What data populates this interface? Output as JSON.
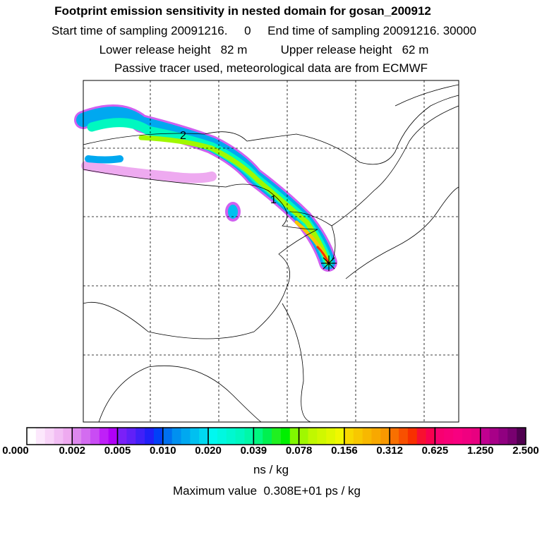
{
  "header": {
    "title": "Footprint emission sensitivity in nested domain for gosan_200912",
    "line1": "Start time of sampling 20091216.     0     End time of sampling 20091216. 30000",
    "line2": "Lower release height   82 m          Upper release height   62 m",
    "line3": "Passive tracer used, meteorological data are from ECMWF"
  },
  "map": {
    "labels": [
      "2",
      "1"
    ],
    "release_marker": "star-icon"
  },
  "colorbar": {
    "ticks": [
      "0.000",
      "0.002",
      "0.005",
      "0.010",
      "0.020",
      "0.039",
      "0.078",
      "0.156",
      "0.312",
      "0.625",
      "1.250",
      "2.500"
    ],
    "colors": [
      [
        "#ffffff",
        "#fce8fc",
        "#f8d4f8",
        "#f2bef4",
        "#eeaaf0"
      ],
      [
        "#dd88ee",
        "#d36cf0",
        "#c94cf4",
        "#bf20f8",
        "#b000f8"
      ],
      [
        "#7a20f8",
        "#6020f8",
        "#4020f8",
        "#2020f8",
        "#0040f8"
      ],
      [
        "#0070f0",
        "#0090f0",
        "#00a8f0",
        "#00c0f0",
        "#00d8f0"
      ],
      [
        "#00f8f0",
        "#00f8e0",
        "#00f8d0",
        "#00f8c0",
        "#00f8a8"
      ],
      [
        "#00f880",
        "#00f050",
        "#20f020",
        "#00f000",
        "#80f800"
      ],
      [
        "#a0f800",
        "#c0f800",
        "#d0f800",
        "#e0f800",
        "#f0f800"
      ],
      [
        "#f8d800",
        "#f8c800",
        "#f8b800",
        "#f8a800",
        "#f89800"
      ],
      [
        "#f87000",
        "#f85000",
        "#f83000",
        "#f81030",
        "#f80050"
      ],
      [
        "#f80070",
        "#f80078",
        "#f80080",
        "#f00080",
        "#e80080"
      ],
      [
        "#c00090",
        "#a80088",
        "#900080",
        "#780070",
        "#500050"
      ]
    ],
    "unit": "ns / kg",
    "max_value": "Maximum value  0.308E+01 ps / kg"
  }
}
